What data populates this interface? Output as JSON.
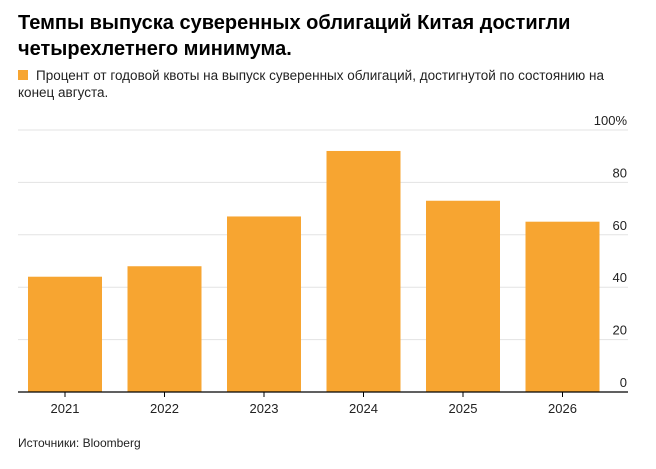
{
  "title": "Темпы выпуска суверенных облигаций Китая достигли четырехлетнего минимума.",
  "legend": {
    "label": "Процент от годовой квоты на выпуск суверенных облигаций, достигнутой по состоянию на конец августа.",
    "color": "#F7A531"
  },
  "source": "Источники: Bloomberg",
  "chart_data": {
    "type": "bar",
    "categories": [
      "2021",
      "2022",
      "2023",
      "2024",
      "2025",
      "2026"
    ],
    "values": [
      44,
      48,
      67,
      92,
      73,
      65
    ],
    "ylim": [
      0,
      100
    ],
    "yticks": [
      0,
      20,
      40,
      60,
      80,
      100
    ],
    "ytick_labels": [
      "0",
      "20",
      "40",
      "60",
      "80",
      "100%"
    ],
    "y_axis_side": "right",
    "grid": true,
    "bar_color": "#F7A531",
    "grid_color": "#E3E3E3"
  }
}
